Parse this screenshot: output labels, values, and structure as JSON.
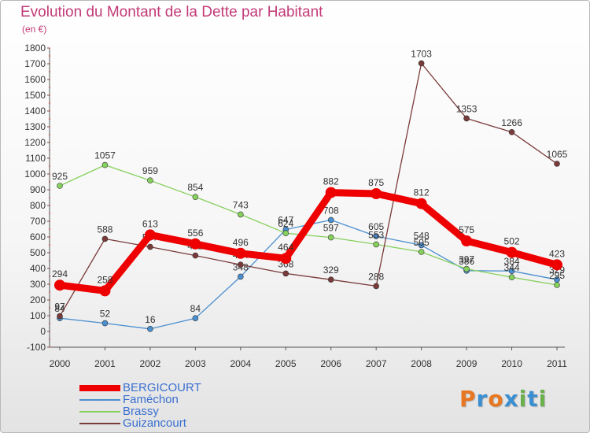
{
  "title": "Evolution du Montant de la Dette par Habitant",
  "subtitle": "(en €)",
  "logo": {
    "text": "Proxiti",
    "colors": [
      "#e87722",
      "#3a8fd1",
      "#e87722",
      "#3a8fd1",
      "#6ab04c",
      "#3a8fd1",
      "#6ab04c"
    ]
  },
  "chart_data": {
    "type": "line",
    "title": "Evolution du Montant de la Dette par Habitant",
    "subtitle": "(en €)",
    "x": [
      "2000",
      "2001",
      "2002",
      "2003",
      "2004",
      "2005",
      "2006",
      "2007",
      "2008",
      "2009",
      "2010",
      "2011"
    ],
    "ylim": [
      -100,
      1800
    ],
    "yticks": [
      -100,
      0,
      100,
      200,
      300,
      400,
      500,
      600,
      700,
      800,
      900,
      1000,
      1100,
      1200,
      1300,
      1400,
      1500,
      1600,
      1700,
      1800
    ],
    "grid": false,
    "legend": "bottom-left",
    "series": [
      {
        "name": "Faméchon",
        "color": "#4a8fd0",
        "values": [
          84,
          52,
          16,
          84,
          348,
          647,
          708,
          605,
          548,
          386,
          384,
          329
        ],
        "labels": [
          "84",
          "52",
          "16",
          "84",
          "348",
          "647",
          "708",
          "605",
          "548",
          "386",
          "384",
          "329"
        ]
      },
      {
        "name": "Brassy",
        "color": "#86d05c",
        "values": [
          925,
          1057,
          959,
          854,
          743,
          624,
          597,
          553,
          505,
          397,
          344,
          295
        ],
        "labels": [
          "925",
          "1057",
          "959",
          "854",
          "743",
          "624",
          "597",
          "553",
          "505",
          "397",
          "344",
          "295"
        ]
      },
      {
        "name": "Guizancourt",
        "color": "#7a3a3a",
        "values": [
          97,
          588,
          537,
          482,
          424,
          368,
          329,
          288,
          1703,
          1353,
          1266,
          1065
        ],
        "labels": [
          "97",
          "588",
          "537",
          "482",
          "424",
          "368",
          "329",
          "288",
          "1703",
          "1353",
          "1266",
          "1065"
        ]
      },
      {
        "name": "BERGICOURT",
        "color": "#ee0000",
        "values": [
          294,
          258,
          613,
          556,
          496,
          464,
          882,
          875,
          812,
          575,
          502,
          423
        ],
        "labels": [
          "294",
          "258",
          "613",
          "556",
          "496",
          "464",
          "882",
          "875",
          "812",
          "575",
          "502",
          "423"
        ]
      }
    ],
    "legend_order": [
      "BERGICOURT",
      "Faméchon",
      "Brassy",
      "Guizancourt"
    ]
  }
}
